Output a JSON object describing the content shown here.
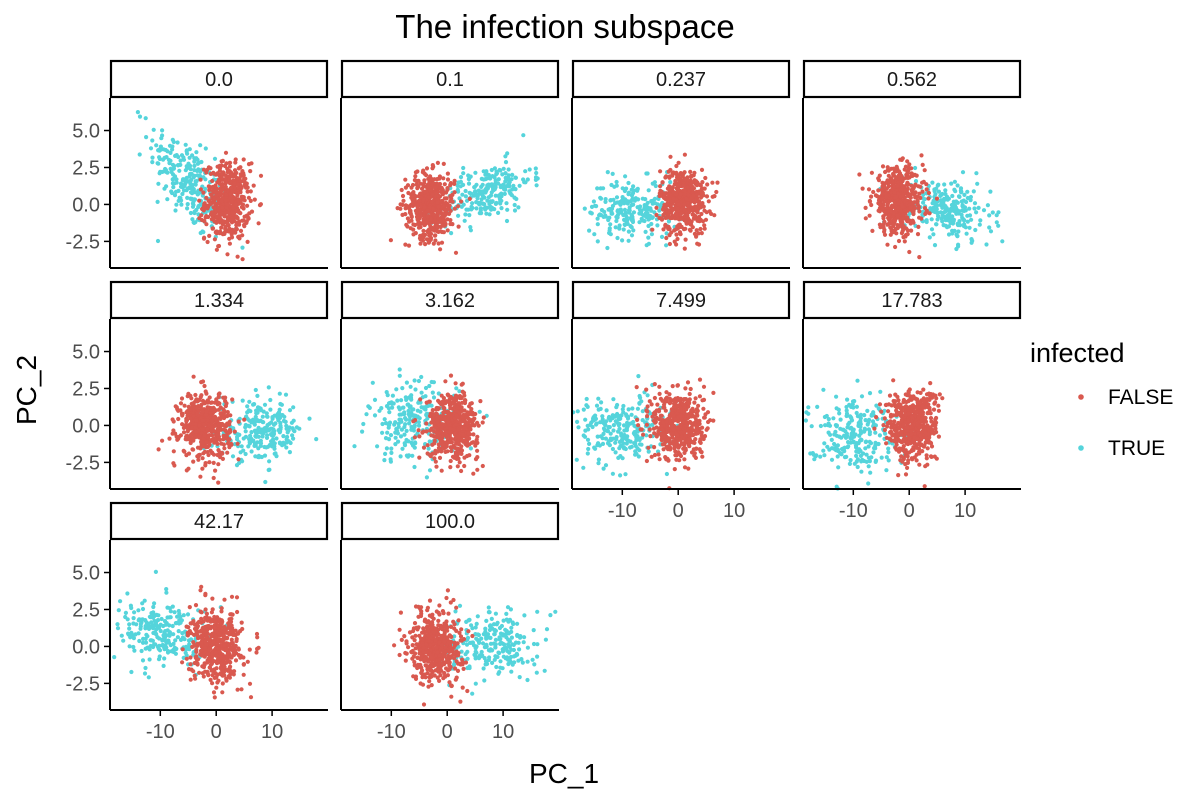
{
  "chart_data": {
    "type": "scatter",
    "title": "The infection subspace",
    "xlabel": "PC_1",
    "ylabel": "PC_2",
    "legend": {
      "title": "infected",
      "position": "right",
      "entries": [
        {
          "label": "FALSE",
          "color": "#D9594F"
        },
        {
          "label": "TRUE",
          "color": "#55D4DB"
        }
      ]
    },
    "grid": false,
    "xlim": [
      -19,
      20
    ],
    "ylim": [
      -4.3,
      7.2
    ],
    "xticks": [
      -10,
      0,
      10
    ],
    "xtick_labels": [
      "-10",
      "0",
      "10"
    ],
    "yticks": [
      -2.5,
      0.0,
      2.5,
      5.0
    ],
    "ytick_labels": [
      "-2.5",
      "0.0",
      "2.5",
      "5.0"
    ],
    "series_names": [
      "FALSE",
      "TRUE"
    ],
    "panels": [
      {
        "label": "0.0",
        "FALSE": {
          "cx": 2.0,
          "cy": 0.2,
          "sx": 2.0,
          "sy": 1.3,
          "n": 500
        },
        "TRUE": {
          "cx": -5.0,
          "cy": 1.5,
          "sx": 3.5,
          "sy": 1.4,
          "n": 260,
          "slope": -0.35
        }
      },
      {
        "label": "0.1",
        "FALSE": {
          "cx": -3.0,
          "cy": -0.1,
          "sx": 2.2,
          "sy": 1.1,
          "n": 500
        },
        "TRUE": {
          "cx": 7.0,
          "cy": 0.8,
          "sx": 4.0,
          "sy": 0.9,
          "n": 240,
          "slope": 0.12
        }
      },
      {
        "label": "0.237",
        "FALSE": {
          "cx": 1.0,
          "cy": 0.2,
          "sx": 2.1,
          "sy": 1.1,
          "n": 500
        },
        "TRUE": {
          "cx": -8.0,
          "cy": -0.3,
          "sx": 4.0,
          "sy": 1.0,
          "n": 240
        }
      },
      {
        "label": "0.562",
        "FALSE": {
          "cx": -2.0,
          "cy": 0.2,
          "sx": 2.3,
          "sy": 1.1,
          "n": 500
        },
        "TRUE": {
          "cx": 7.0,
          "cy": -0.4,
          "sx": 3.8,
          "sy": 1.0,
          "n": 240,
          "slope": -0.08
        }
      },
      {
        "label": "1.334",
        "FALSE": {
          "cx": -2.0,
          "cy": 0.0,
          "sx": 2.3,
          "sy": 1.1,
          "n": 500
        },
        "TRUE": {
          "cx": 8.0,
          "cy": -0.4,
          "sx": 3.8,
          "sy": 1.0,
          "n": 240
        }
      },
      {
        "label": "3.162",
        "FALSE": {
          "cx": 1.0,
          "cy": 0.0,
          "sx": 2.3,
          "sy": 1.1,
          "n": 500
        },
        "TRUE": {
          "cx": -6.0,
          "cy": 0.2,
          "sx": 4.0,
          "sy": 1.3,
          "n": 240
        }
      },
      {
        "label": "7.499",
        "FALSE": {
          "cx": 0.0,
          "cy": 0.0,
          "sx": 2.3,
          "sy": 1.2,
          "n": 500
        },
        "TRUE": {
          "cx": -10.0,
          "cy": -0.3,
          "sx": 4.0,
          "sy": 1.1,
          "n": 240
        }
      },
      {
        "label": "17.783",
        "FALSE": {
          "cx": 0.5,
          "cy": 0.0,
          "sx": 2.3,
          "sy": 1.2,
          "n": 500
        },
        "TRUE": {
          "cx": -10.0,
          "cy": -0.5,
          "sx": 4.0,
          "sy": 1.2,
          "n": 240
        }
      },
      {
        "label": "42.17",
        "FALSE": {
          "cx": 0.0,
          "cy": 0.0,
          "sx": 2.3,
          "sy": 1.2,
          "n": 500
        },
        "TRUE": {
          "cx": -9.0,
          "cy": 0.8,
          "sx": 4.2,
          "sy": 1.1,
          "n": 240,
          "slope": -0.05
        }
      },
      {
        "label": "100.0",
        "FALSE": {
          "cx": -2.0,
          "cy": 0.0,
          "sx": 2.3,
          "sy": 1.2,
          "n": 500
        },
        "TRUE": {
          "cx": 8.0,
          "cy": 0.2,
          "sx": 4.0,
          "sy": 1.1,
          "n": 240
        }
      }
    ]
  }
}
